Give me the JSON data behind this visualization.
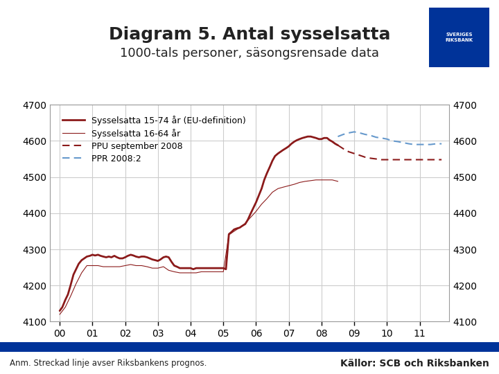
{
  "title": "Diagram 5. Antal sysselsatta",
  "subtitle": "1000-tals personer, säsongsrensade data",
  "title_fontsize": 18,
  "subtitle_fontsize": 13,
  "ylim": [
    4100,
    4700
  ],
  "yticks": [
    4100,
    4200,
    4300,
    4400,
    4500,
    4600,
    4700
  ],
  "xtick_labels": [
    "00",
    "01",
    "02",
    "03",
    "04",
    "05",
    "06",
    "07",
    "08",
    "09",
    "10",
    "11"
  ],
  "xtick_values": [
    2000,
    2001,
    2002,
    2003,
    2004,
    2005,
    2006,
    2007,
    2008,
    2009,
    2010,
    2011
  ],
  "xlabel": "",
  "ylabel": "",
  "background_color": "#ffffff",
  "grid_color": "#cccccc",
  "footer_bar_color": "#003399",
  "note_text": "Anm. Streckad linje avser Riksbankens prognos.",
  "source_text": "Källor: SCB och Riksbanken",
  "legend_entries": [
    {
      "label": "Sysselsatta 15-74 år (EU-definition)",
      "color": "#8B1A1A",
      "style": "solid"
    },
    {
      "label": "Sysselsatta 16-64 år",
      "color": "#8B1A1A",
      "style": "solid_thin"
    },
    {
      "label": "PPU september 2008",
      "color": "#8B1A1A",
      "style": "dashed"
    },
    {
      "label": "PPR 2008:2",
      "color": "#6699CC",
      "style": "dashed"
    }
  ],
  "series_15_74": {
    "x": [
      2000.0,
      2000.08,
      2000.17,
      2000.25,
      2000.33,
      2000.42,
      2000.5,
      2000.58,
      2000.67,
      2000.75,
      2000.83,
      2000.92,
      2001.0,
      2001.08,
      2001.17,
      2001.25,
      2001.33,
      2001.42,
      2001.5,
      2001.58,
      2001.67,
      2001.75,
      2001.83,
      2001.92,
      2002.0,
      2002.08,
      2002.17,
      2002.25,
      2002.33,
      2002.42,
      2002.5,
      2002.58,
      2002.67,
      2002.75,
      2002.83,
      2002.92,
      2003.0,
      2003.08,
      2003.17,
      2003.25,
      2003.33,
      2003.42,
      2003.5,
      2003.58,
      2003.67,
      2003.75,
      2003.83,
      2003.92,
      2004.0,
      2004.08,
      2004.17,
      2004.25,
      2004.33,
      2004.42,
      2004.5,
      2004.58,
      2004.67,
      2004.75,
      2004.83,
      2004.92,
      2005.0,
      2005.08,
      2005.17,
      2005.25,
      2005.33,
      2005.42,
      2005.5,
      2005.58,
      2005.67,
      2005.75,
      2005.83,
      2005.92,
      2006.0,
      2006.08,
      2006.17,
      2006.25,
      2006.33,
      2006.42,
      2006.5,
      2006.58,
      2006.67,
      2006.75,
      2006.83,
      2006.92,
      2007.0,
      2007.08,
      2007.17,
      2007.25,
      2007.33,
      2007.42,
      2007.5,
      2007.58,
      2007.67,
      2007.75,
      2007.83,
      2007.92,
      2008.0,
      2008.08,
      2008.17,
      2008.25,
      2008.33,
      2008.42,
      2008.5
    ],
    "y": [
      4130,
      4140,
      4160,
      4175,
      4200,
      4230,
      4245,
      4260,
      4270,
      4275,
      4280,
      4282,
      4285,
      4283,
      4285,
      4282,
      4280,
      4278,
      4280,
      4278,
      4282,
      4278,
      4275,
      4275,
      4278,
      4282,
      4285,
      4283,
      4280,
      4278,
      4280,
      4280,
      4278,
      4275,
      4272,
      4270,
      4268,
      4272,
      4278,
      4280,
      4278,
      4265,
      4255,
      4252,
      4248,
      4248,
      4248,
      4248,
      4248,
      4245,
      4248,
      4248,
      4248,
      4248,
      4248,
      4248,
      4248,
      4248,
      4248,
      4248,
      4248,
      4245,
      4342,
      4348,
      4355,
      4358,
      4360,
      4365,
      4370,
      4382,
      4398,
      4415,
      4430,
      4448,
      4468,
      4492,
      4510,
      4528,
      4545,
      4558,
      4565,
      4570,
      4575,
      4580,
      4585,
      4592,
      4598,
      4602,
      4605,
      4608,
      4610,
      4612,
      4612,
      4610,
      4608,
      4605,
      4605,
      4608,
      4608,
      4602,
      4598,
      4592,
      4588
    ]
  },
  "series_16_64": {
    "x": [
      2000.0,
      2000.17,
      2000.33,
      2000.5,
      2000.67,
      2000.83,
      2001.0,
      2001.17,
      2001.33,
      2001.5,
      2001.67,
      2001.83,
      2002.0,
      2002.17,
      2002.33,
      2002.5,
      2002.67,
      2002.83,
      2003.0,
      2003.17,
      2003.33,
      2003.5,
      2003.67,
      2003.83,
      2004.0,
      2004.17,
      2004.33,
      2004.5,
      2004.67,
      2004.83,
      2005.0,
      2005.17,
      2005.33,
      2005.5,
      2005.67,
      2005.83,
      2006.0,
      2006.17,
      2006.33,
      2006.5,
      2006.67,
      2006.83,
      2007.0,
      2007.17,
      2007.33,
      2007.5,
      2007.67,
      2007.83,
      2008.0,
      2008.17,
      2008.33,
      2008.5
    ],
    "y": [
      4120,
      4140,
      4170,
      4205,
      4235,
      4255,
      4255,
      4255,
      4252,
      4252,
      4252,
      4252,
      4255,
      4258,
      4255,
      4255,
      4252,
      4248,
      4248,
      4252,
      4242,
      4238,
      4235,
      4235,
      4235,
      4235,
      4238,
      4238,
      4238,
      4238,
      4238,
      4340,
      4350,
      4360,
      4372,
      4388,
      4405,
      4425,
      4440,
      4458,
      4468,
      4472,
      4476,
      4480,
      4485,
      4488,
      4490,
      4492,
      4492,
      4492,
      4492,
      4488
    ]
  },
  "series_ppu": {
    "x": [
      2008.5,
      2008.67,
      2008.83,
      2009.0,
      2009.17,
      2009.33,
      2009.5,
      2009.67,
      2009.83,
      2010.0,
      2010.17,
      2010.33,
      2010.5,
      2010.67,
      2010.83,
      2011.0,
      2011.17,
      2011.33,
      2011.5,
      2011.67
    ],
    "y": [
      4588,
      4578,
      4570,
      4565,
      4560,
      4555,
      4552,
      4550,
      4548,
      4548,
      4548,
      4548,
      4548,
      4548,
      4548,
      4548,
      4548,
      4548,
      4548,
      4548
    ]
  },
  "series_ppr": {
    "x": [
      2008.5,
      2008.67,
      2008.83,
      2009.0,
      2009.17,
      2009.33,
      2009.5,
      2009.67,
      2009.83,
      2010.0,
      2010.17,
      2010.33,
      2010.5,
      2010.67,
      2010.83,
      2011.0,
      2011.17,
      2011.33,
      2011.5,
      2011.67
    ],
    "y": [
      4612,
      4618,
      4622,
      4625,
      4622,
      4618,
      4615,
      4610,
      4608,
      4605,
      4600,
      4598,
      4595,
      4592,
      4590,
      4590,
      4590,
      4590,
      4592,
      4592
    ]
  },
  "color_dark_red": "#8B1A1A",
  "color_blue": "#6699CC"
}
